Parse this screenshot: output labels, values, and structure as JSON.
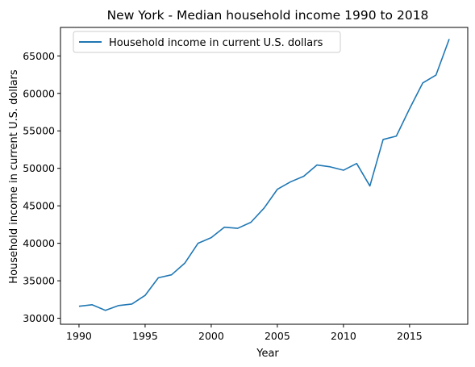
{
  "chart_data": {
    "type": "line",
    "title": "New York - Median household income 1990 to 2018",
    "xlabel": "Year",
    "ylabel": "Household income in current U.S. dollars",
    "xlim": [
      1988.6,
      2019.4
    ],
    "ylim": [
      29200,
      68800
    ],
    "x_ticks": [
      1990,
      1995,
      2000,
      2005,
      2010,
      2015
    ],
    "y_ticks": [
      30000,
      35000,
      40000,
      45000,
      50000,
      55000,
      60000,
      65000
    ],
    "grid": false,
    "legend_position": "top-left",
    "x": [
      1990,
      1991,
      1992,
      1993,
      1994,
      1995,
      1996,
      1997,
      1998,
      1999,
      2000,
      2001,
      2002,
      2003,
      2004,
      2005,
      2006,
      2007,
      2008,
      2009,
      2010,
      2011,
      2012,
      2013,
      2014,
      2015,
      2016,
      2017,
      2018
    ],
    "series": [
      {
        "name": "Household income in current U.S. dollars",
        "color": "#1f77b4",
        "values": [
          31600,
          31800,
          31050,
          31700,
          31900,
          33050,
          35400,
          35800,
          37350,
          40000,
          40750,
          42150,
          42000,
          42800,
          44700,
          47200,
          48200,
          48950,
          50450,
          50200,
          49750,
          50650,
          47650,
          53850,
          54300,
          57950,
          61400,
          62450,
          67250
        ]
      }
    ]
  }
}
